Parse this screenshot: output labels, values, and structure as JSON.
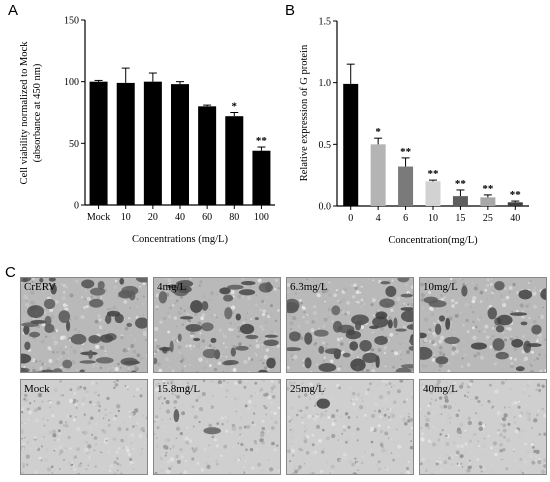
{
  "panels": {
    "a_letter": "A",
    "b_letter": "B",
    "c_letter": "C"
  },
  "chart_data": [
    {
      "type": "bar",
      "panel": "A",
      "categories": [
        "Mock",
        "10",
        "20",
        "40",
        "60",
        "80",
        "100"
      ],
      "values": [
        100,
        99,
        100,
        98,
        80,
        72,
        44
      ],
      "errors": [
        1,
        12,
        7,
        2,
        1,
        3,
        3
      ],
      "significance": [
        "",
        "",
        "",
        "",
        "",
        "*",
        "**"
      ],
      "colors": [
        "#000000",
        "#000000",
        "#000000",
        "#000000",
        "#000000",
        "#000000",
        "#000000"
      ],
      "xlabel": "Concentrations (mg/L)",
      "ylabel": "Cell viability normalized to Mock (absorbance at 450 nm)",
      "ylabel_lines": [
        "Cell viability normalized to Mock",
        "(absorbance at 450 nm)"
      ],
      "ylim": [
        0,
        150
      ],
      "yticks": [
        0,
        50,
        100,
        150
      ],
      "ytick_labels": [
        "0",
        "50",
        "100",
        "150"
      ]
    },
    {
      "type": "bar",
      "panel": "B",
      "categories": [
        "0",
        "4",
        "6",
        "10",
        "15",
        "25",
        "40"
      ],
      "values": [
        0.99,
        0.5,
        0.32,
        0.2,
        0.08,
        0.07,
        0.03
      ],
      "errors": [
        0.16,
        0.05,
        0.07,
        0.01,
        0.05,
        0.02,
        0.01
      ],
      "significance": [
        "",
        "*",
        "**",
        "**",
        "**",
        "**",
        "**"
      ],
      "colors": [
        "#000000",
        "#b4b4b4",
        "#7a7a7a",
        "#d2d2d2",
        "#5e5e5e",
        "#a8a8a8",
        "#3e3e3e"
      ],
      "xlabel": "Concentration(mg/L)",
      "ylabel": "Relative expression of G protein",
      "ylim": [
        0,
        1.5
      ],
      "yticks": [
        0,
        0.5,
        1.0,
        1.5
      ],
      "ytick_labels": [
        "0.0",
        "0.5",
        "1.0",
        "1.5"
      ]
    }
  ],
  "micrographs": [
    {
      "label": "CrERV",
      "darkness": 0.55,
      "seed": 11
    },
    {
      "label": "4mg/L",
      "darkness": 0.45,
      "seed": 23
    },
    {
      "label": "6.3mg/L",
      "darkness": 0.5,
      "seed": 37
    },
    {
      "label": "10mg/L",
      "darkness": 0.3,
      "seed": 41
    },
    {
      "label": "Mock",
      "darkness": 0.0,
      "seed": 53
    },
    {
      "label": "15.8mg/L",
      "darkness": 0.03,
      "seed": 67
    },
    {
      "label": "25mg/L",
      "darkness": 0.02,
      "seed": 71
    },
    {
      "label": "40mg/L",
      "darkness": 0.01,
      "seed": 89
    }
  ]
}
